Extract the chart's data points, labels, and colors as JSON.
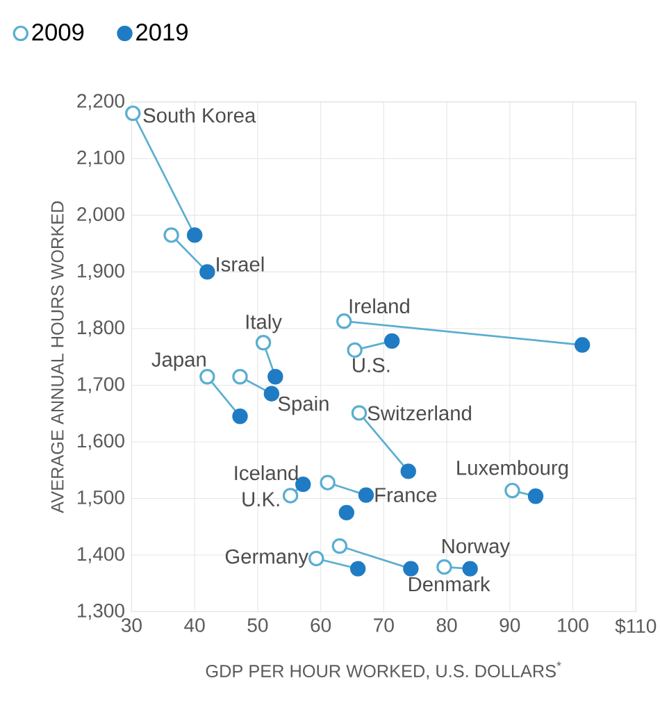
{
  "chart_data": {
    "type": "scatter",
    "xlabel": "GDP PER HOUR WORKED, U.S. DOLLARS$^{*}$",
    "ylabel": "AVERAGE ANNUAL HOURS WORKED",
    "xlim": [
      30,
      110
    ],
    "ylim": [
      1300,
      2200
    ],
    "xticks": [
      30,
      40,
      50,
      60,
      70,
      80,
      90,
      100,
      {
        "value": 110,
        "label": "$110"
      }
    ],
    "yticks": [
      {
        "value": 1300,
        "label": "1,300"
      },
      {
        "value": 1400,
        "label": "1,400"
      },
      {
        "value": 1500,
        "label": "1,500"
      },
      {
        "value": 1600,
        "label": "1,600"
      },
      {
        "value": 1700,
        "label": "1,700"
      },
      {
        "value": 1800,
        "label": "1,800"
      },
      {
        "value": 1900,
        "label": "1,900"
      },
      {
        "value": 2000,
        "label": "2,000"
      },
      {
        "value": 2100,
        "label": "2,100"
      },
      {
        "value": 2200,
        "label": "2,200"
      }
    ],
    "grid": true,
    "legend": "top",
    "marker": "circle",
    "series": [
      {
        "name": "2009",
        "color": "#5aaed0",
        "x": [
          30.2,
          36.3,
          50.9,
          42,
          47.2,
          63.7,
          65.4,
          66.1,
          90.4,
          61.1,
          58,
          55.2,
          59.3,
          79.6,
          63
        ],
        "values": [
          2180,
          1965,
          1775,
          1715,
          1715,
          1813,
          1762,
          1651,
          1514,
          1528,
          null,
          1505,
          1394,
          1379,
          1416
        ]
      },
      {
        "name": "2019",
        "color": "#1f7cc4",
        "x": [
          40,
          42,
          52.8,
          47.2,
          52.2,
          101.5,
          71.3,
          73.9,
          94.1,
          67.2,
          64.1,
          57.2,
          65.9,
          83.7,
          74.3
        ],
        "values": [
          1965,
          1900,
          1715,
          1645,
          1685,
          1771,
          1778,
          1548,
          1504,
          1506,
          1475,
          1525,
          1376,
          1376,
          1376
        ]
      }
    ],
    "annotations": [
      {
        "text": "South Korea",
        "x": 30.2,
        "y": 2180
      },
      {
        "text": "Israel",
        "x": 42,
        "y": 1900
      },
      {
        "text": "Italy",
        "x": 50.9,
        "y": 1775
      },
      {
        "text": "Japan",
        "x": 42,
        "y": 1715
      },
      {
        "text": "Spain",
        "x": 52.2,
        "y": 1685
      },
      {
        "text": "Ireland",
        "x": 63.7,
        "y": 1813
      },
      {
        "text": "U.S.",
        "x": 65.4,
        "y": 1762
      },
      {
        "text": "Switzerland",
        "x": 66.1,
        "y": 1651
      },
      {
        "text": "Luxembourg",
        "x": 90.4,
        "y": 1514
      },
      {
        "text": "France",
        "x": 67.2,
        "y": 1506
      },
      {
        "text": "Iceland",
        "x": 57.2,
        "y": 1525
      },
      {
        "text": "U.K.",
        "x": 55.2,
        "y": 1505
      },
      {
        "text": "Germany",
        "x": 59.3,
        "y": 1394
      },
      {
        "text": "Norway",
        "x": 79.6,
        "y": 1379
      },
      {
        "text": "Denmark",
        "x": 74.3,
        "y": 1376
      }
    ]
  }
}
